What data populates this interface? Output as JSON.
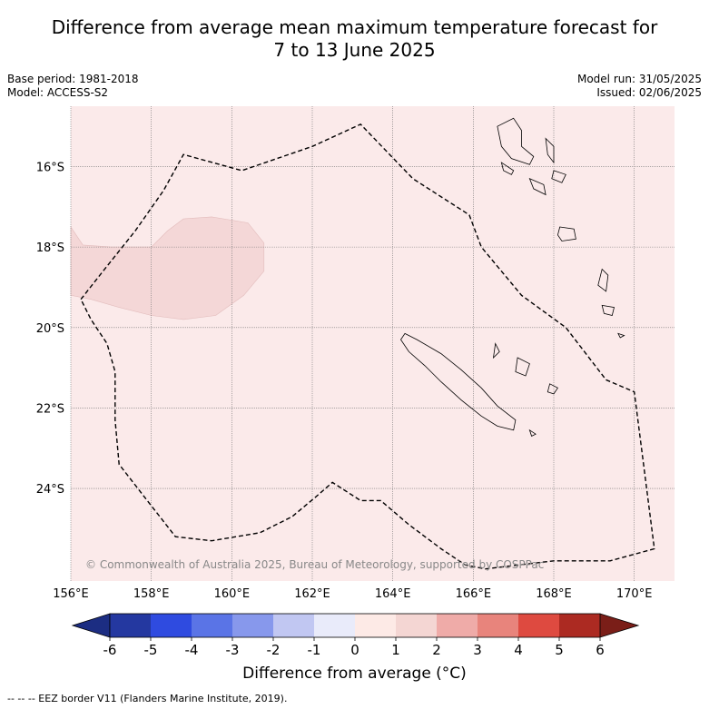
{
  "title": {
    "line1": "Difference from average mean maximum temperature forecast for",
    "line2": "7 to 13 June 2025"
  },
  "meta": {
    "base_period": "Base period: 1981-2018",
    "model": "Model: ACCESS-S2",
    "model_run": "Model run: 31/05/2025",
    "issued": "Issued: 02/06/2025"
  },
  "map": {
    "lon_range": [
      156,
      171
    ],
    "lat_range": [
      -26.3,
      -14.5
    ],
    "background_color": "#fbeaea",
    "anomaly_color": "#f4d7d7",
    "grid": true,
    "x_ticks": [
      "156°E",
      "158°E",
      "160°E",
      "162°E",
      "164°E",
      "166°E",
      "168°E",
      "170°E"
    ],
    "y_ticks": [
      "16°S",
      "18°S",
      "20°S",
      "22°S",
      "24°S"
    ],
    "copyright": "© Commonwealth of Australia 2025, Bureau of Meteorology, supported by COSPPac",
    "eez_border": [
      [
        156.25,
        -19.3
      ],
      [
        156.8,
        -18.6
      ],
      [
        157.6,
        -17.6
      ],
      [
        158.3,
        -16.6
      ],
      [
        158.8,
        -15.7
      ],
      [
        160.25,
        -16.1
      ],
      [
        162,
        -15.5
      ],
      [
        163.2,
        -14.95
      ],
      [
        164.5,
        -16.3
      ],
      [
        165.9,
        -17.2
      ],
      [
        166.2,
        -18.0
      ],
      [
        167.2,
        -19.2
      ],
      [
        168.3,
        -20.0
      ],
      [
        169.3,
        -21.3
      ],
      [
        170.0,
        -21.6
      ],
      [
        170.5,
        -25.5
      ],
      [
        169.4,
        -25.8
      ],
      [
        168.0,
        -25.8
      ],
      [
        166.3,
        -26.0
      ],
      [
        165.8,
        -25.9
      ],
      [
        165.2,
        -25.5
      ],
      [
        164.4,
        -24.9
      ],
      [
        163.7,
        -24.3
      ],
      [
        163.2,
        -24.3
      ],
      [
        162.5,
        -23.85
      ],
      [
        162.1,
        -24.2
      ],
      [
        161.5,
        -24.7
      ],
      [
        160.7,
        -25.1
      ],
      [
        159.5,
        -25.3
      ],
      [
        158.6,
        -25.2
      ],
      [
        157.9,
        -24.3
      ],
      [
        157.2,
        -23.4
      ],
      [
        157.1,
        -22.3
      ],
      [
        157.1,
        -21.1
      ],
      [
        156.9,
        -20.4
      ],
      [
        156.5,
        -19.8
      ],
      [
        156.25,
        -19.3
      ]
    ],
    "anomaly_region": [
      [
        156.0,
        -17.5
      ],
      [
        156.3,
        -17.95
      ],
      [
        157.0,
        -18.0
      ],
      [
        158.0,
        -18.0
      ],
      [
        158.4,
        -17.6
      ],
      [
        158.8,
        -17.3
      ],
      [
        159.5,
        -17.25
      ],
      [
        160.4,
        -17.4
      ],
      [
        160.8,
        -17.9
      ],
      [
        160.8,
        -18.6
      ],
      [
        160.3,
        -19.2
      ],
      [
        159.6,
        -19.7
      ],
      [
        158.8,
        -19.8
      ],
      [
        158.0,
        -19.7
      ],
      [
        157.2,
        -19.5
      ],
      [
        156.5,
        -19.3
      ],
      [
        156.0,
        -19.2
      ]
    ],
    "islands": [
      [
        [
          164.3,
          -20.15
        ],
        [
          164.6,
          -20.3
        ],
        [
          165.2,
          -20.65
        ],
        [
          165.7,
          -21.05
        ],
        [
          166.2,
          -21.5
        ],
        [
          166.6,
          -21.95
        ],
        [
          167.05,
          -22.3
        ],
        [
          167.0,
          -22.55
        ],
        [
          166.6,
          -22.45
        ],
        [
          166.2,
          -22.2
        ],
        [
          165.7,
          -21.8
        ],
        [
          165.2,
          -21.35
        ],
        [
          164.8,
          -20.95
        ],
        [
          164.4,
          -20.6
        ],
        [
          164.2,
          -20.3
        ]
      ],
      [
        [
          167.8,
          -15.3
        ],
        [
          168.0,
          -15.5
        ],
        [
          168.0,
          -15.9
        ],
        [
          167.85,
          -15.7
        ]
      ],
      [
        [
          167.0,
          -14.8
        ],
        [
          167.2,
          -15.1
        ],
        [
          167.2,
          -15.5
        ],
        [
          167.5,
          -15.75
        ],
        [
          167.4,
          -15.95
        ],
        [
          166.95,
          -15.8
        ],
        [
          166.7,
          -15.5
        ],
        [
          166.6,
          -15.0
        ]
      ],
      [
        [
          167.4,
          -16.3
        ],
        [
          167.75,
          -16.45
        ],
        [
          167.8,
          -16.7
        ],
        [
          167.5,
          -16.55
        ]
      ],
      [
        [
          166.7,
          -15.9
        ],
        [
          167.0,
          -16.1
        ],
        [
          166.95,
          -16.2
        ],
        [
          166.75,
          -16.1
        ]
      ],
      [
        [
          168.0,
          -16.1
        ],
        [
          168.3,
          -16.2
        ],
        [
          168.2,
          -16.4
        ],
        [
          167.95,
          -16.3
        ]
      ],
      [
        [
          168.15,
          -17.5
        ],
        [
          168.5,
          -17.55
        ],
        [
          168.55,
          -17.8
        ],
        [
          168.2,
          -17.85
        ],
        [
          168.1,
          -17.7
        ]
      ],
      [
        [
          169.2,
          -18.55
        ],
        [
          169.35,
          -18.7
        ],
        [
          169.3,
          -19.1
        ],
        [
          169.1,
          -18.95
        ]
      ],
      [
        [
          169.2,
          -19.45
        ],
        [
          169.5,
          -19.5
        ],
        [
          169.45,
          -19.7
        ],
        [
          169.25,
          -19.65
        ]
      ],
      [
        [
          167.1,
          -20.75
        ],
        [
          167.4,
          -20.9
        ],
        [
          167.3,
          -21.2
        ],
        [
          167.05,
          -21.1
        ]
      ],
      [
        [
          167.9,
          -21.4
        ],
        [
          168.1,
          -21.5
        ],
        [
          168.0,
          -21.65
        ],
        [
          167.85,
          -21.6
        ]
      ],
      [
        [
          166.55,
          -20.4
        ],
        [
          166.65,
          -20.6
        ],
        [
          166.5,
          -20.75
        ]
      ],
      [
        [
          167.4,
          -22.55
        ],
        [
          167.55,
          -22.65
        ],
        [
          167.45,
          -22.7
        ]
      ],
      [
        [
          169.6,
          -20.15
        ],
        [
          169.75,
          -20.2
        ],
        [
          169.65,
          -20.25
        ]
      ]
    ]
  },
  "colorbar": {
    "ticks": [
      "-6",
      "-5",
      "-4",
      "-3",
      "-2",
      "-1",
      "0",
      "1",
      "2",
      "3",
      "4",
      "5",
      "6"
    ],
    "colors": [
      "#2438a0",
      "#2f4be0",
      "#5a74e6",
      "#8798ec",
      "#c1c7f2",
      "#e9ebfa",
      "#fdeae6",
      "#f4d6d3",
      "#efaba8",
      "#e8847c",
      "#de4a40",
      "#ac2a22"
    ],
    "low_extend_color": "#1c2d82",
    "high_extend_color": "#7a1e18",
    "label": "Difference from average (°C)"
  },
  "footer": "--  --  -- EEZ border V11 (Flanders Marine Institute, 2019)."
}
